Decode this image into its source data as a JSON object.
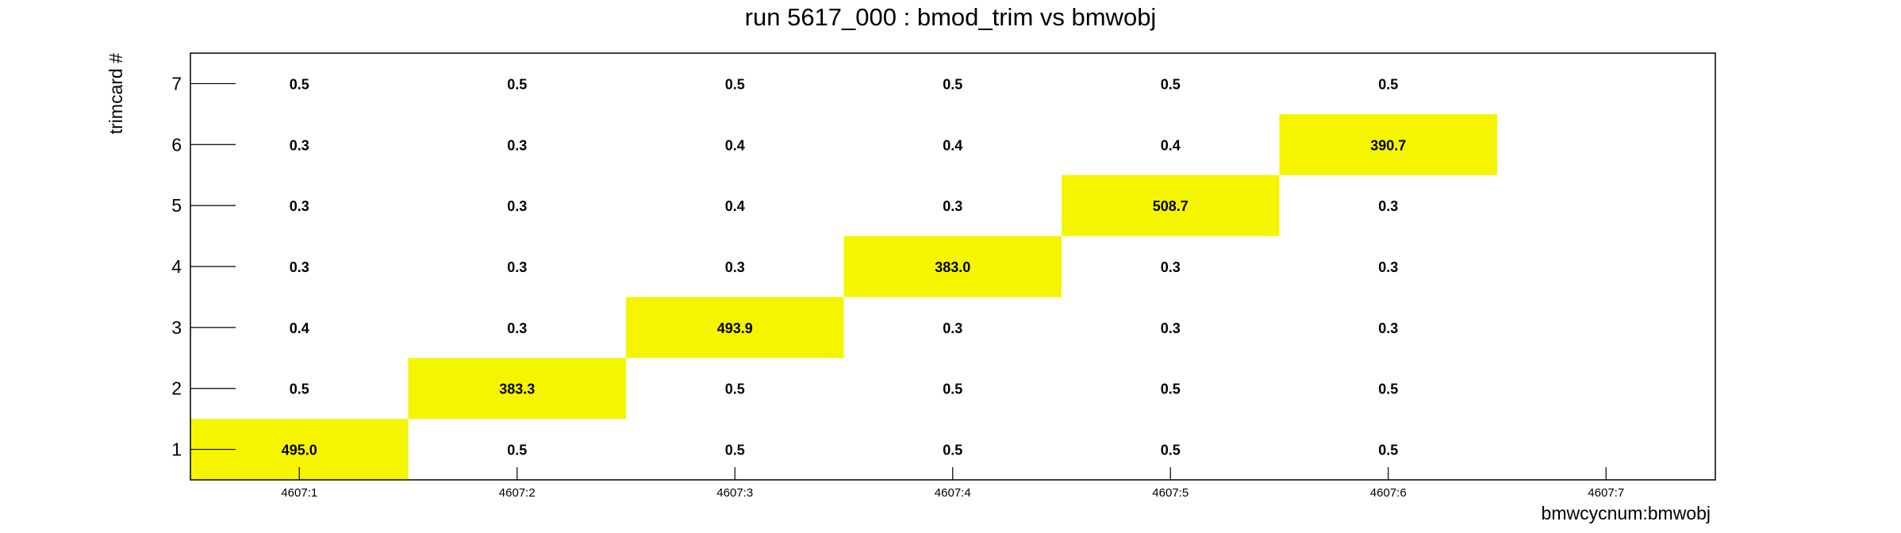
{
  "chart_data": {
    "type": "heatmap",
    "title": "run 5617_000 : bmod_trim vs bmwobj",
    "xlabel": "bmwcycnum:bmwobj",
    "ylabel": "trimcard #",
    "x_categories": [
      "4607:1",
      "4607:2",
      "4607:3",
      "4607:4",
      "4607:5",
      "4607:6",
      "4607:7"
    ],
    "y_categories": [
      "1",
      "2",
      "3",
      "4",
      "5",
      "6",
      "7"
    ],
    "values": [
      [
        "495.0",
        "0.5",
        "0.5",
        "0.5",
        "0.5",
        "0.5",
        null
      ],
      [
        "0.5",
        "383.3",
        "0.5",
        "0.5",
        "0.5",
        "0.5",
        null
      ],
      [
        "0.4",
        "0.3",
        "493.9",
        "0.3",
        "0.3",
        "0.3",
        null
      ],
      [
        "0.3",
        "0.3",
        "0.3",
        "383.0",
        "0.3",
        "0.3",
        null
      ],
      [
        "0.3",
        "0.3",
        "0.4",
        "0.3",
        "508.7",
        "0.3",
        null
      ],
      [
        "0.3",
        "0.3",
        "0.4",
        "0.4",
        "0.4",
        "390.7",
        null
      ],
      [
        "0.5",
        "0.5",
        "0.5",
        "0.5",
        "0.5",
        "0.5",
        null
      ]
    ],
    "highlight_color": "#f5f500",
    "highlight_threshold": 100,
    "grid": false
  }
}
